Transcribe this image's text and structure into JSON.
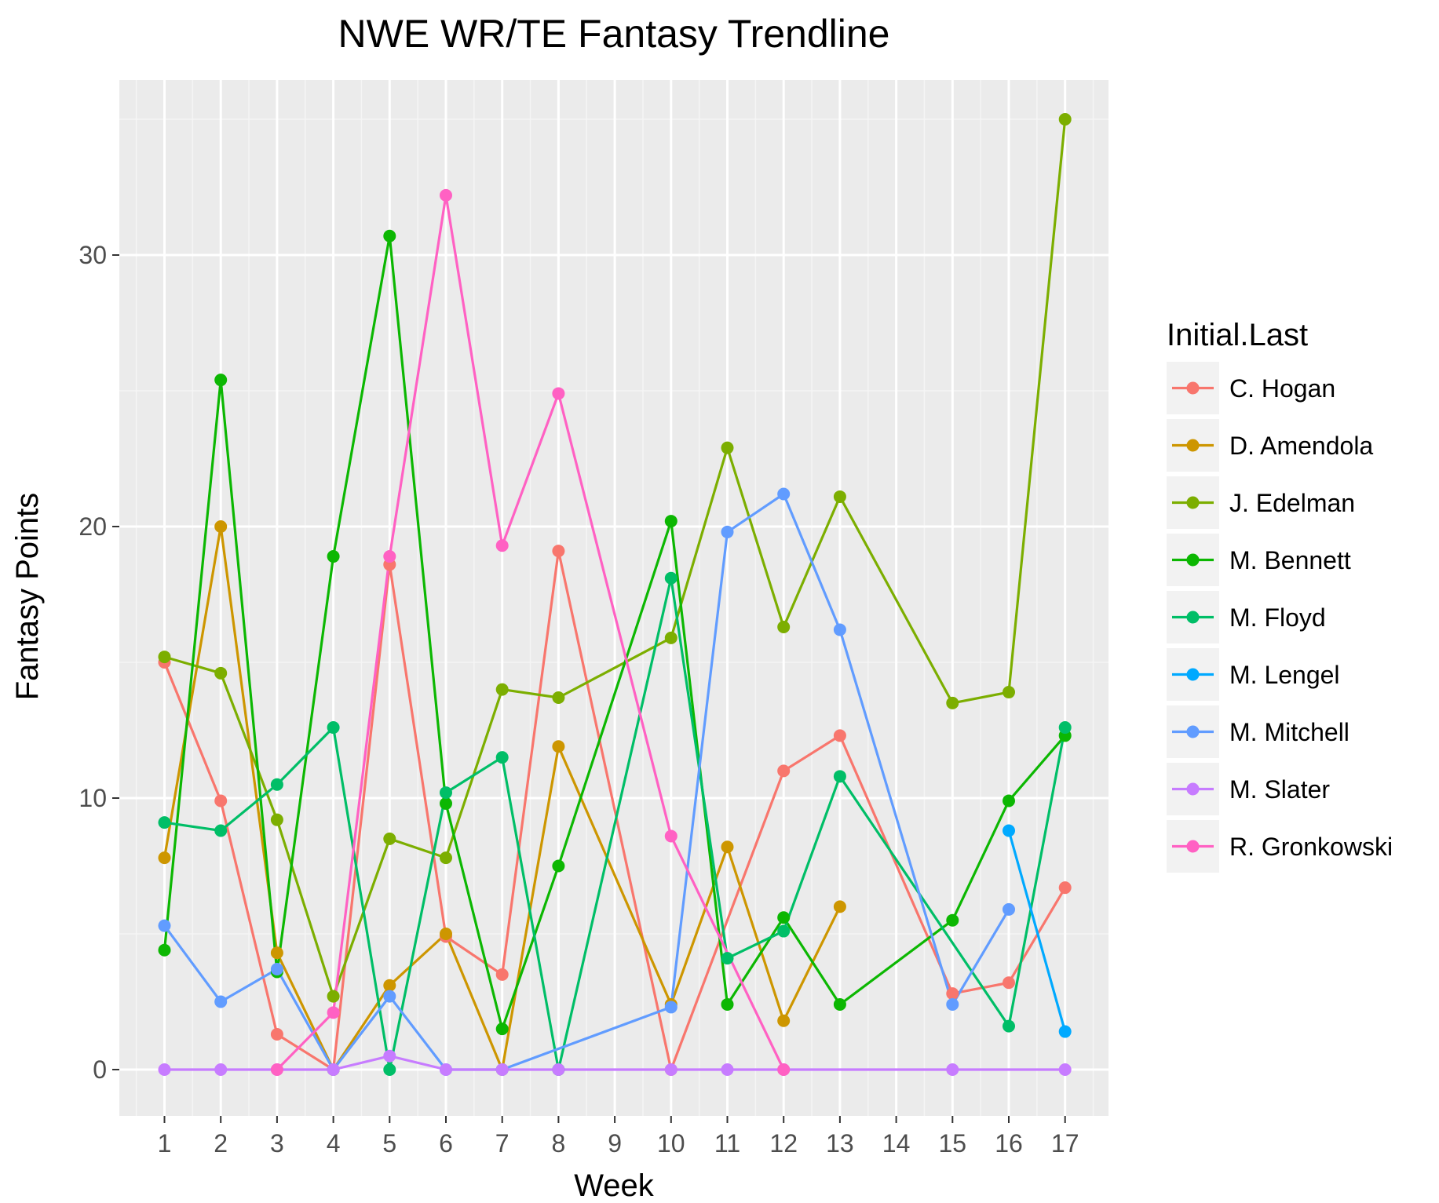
{
  "chart_data": {
    "type": "line",
    "title": "NWE WR/TE Fantasy Trendline",
    "xlabel": "Week",
    "ylabel": "Fantasy Points",
    "x": [
      1,
      2,
      3,
      4,
      5,
      6,
      7,
      8,
      9,
      10,
      11,
      12,
      13,
      14,
      15,
      16,
      17
    ],
    "x_tick_labels": [
      "1",
      "2",
      "3",
      "4",
      "5",
      "6",
      "7",
      "8",
      "9",
      "10",
      "11",
      "12",
      "13",
      "14",
      "15",
      "16",
      "17"
    ],
    "y_ticks": [
      0,
      10,
      20,
      30
    ],
    "y_tick_labels": [
      "0",
      "10",
      "20",
      "30"
    ],
    "ylim": [
      -1.7,
      36.6
    ],
    "grid": true,
    "legend_title": "Initial.Last",
    "legend_position": "right",
    "series": [
      {
        "name": "C. Hogan",
        "color": "#F8766D",
        "points": [
          [
            1,
            15
          ],
          [
            2,
            9.9
          ],
          [
            3,
            1.3
          ],
          [
            4,
            0
          ],
          [
            5,
            18.6
          ],
          [
            6,
            4.9
          ],
          [
            7,
            3.5
          ],
          [
            8,
            19.1
          ],
          [
            10,
            0
          ],
          [
            12,
            11
          ],
          [
            13,
            12.3
          ],
          [
            15,
            2.8
          ],
          [
            16,
            3.2
          ],
          [
            17,
            6.7
          ]
        ]
      },
      {
        "name": "D. Amendola",
        "color": "#CD9600",
        "points": [
          [
            1,
            7.8
          ],
          [
            2,
            20
          ],
          [
            3,
            4.3
          ],
          [
            4,
            0
          ],
          [
            5,
            3.1
          ],
          [
            6,
            5
          ],
          [
            7,
            0
          ],
          [
            8,
            11.9
          ],
          [
            10,
            2.4
          ],
          [
            11,
            8.2
          ],
          [
            12,
            1.8
          ],
          [
            13,
            6
          ]
        ]
      },
      {
        "name": "J. Edelman",
        "color": "#7CAE00",
        "points": [
          [
            1,
            15.2
          ],
          [
            2,
            14.6
          ],
          [
            3,
            9.2
          ],
          [
            4,
            2.7
          ],
          [
            5,
            8.5
          ],
          [
            6,
            7.8
          ],
          [
            7,
            14
          ],
          [
            8,
            13.7
          ],
          [
            10,
            15.9
          ],
          [
            11,
            22.9
          ],
          [
            12,
            16.3
          ],
          [
            13,
            21.1
          ],
          [
            15,
            13.5
          ],
          [
            16,
            13.9
          ],
          [
            17,
            35
          ]
        ]
      },
      {
        "name": "M. Bennett",
        "color": "#0CB702",
        "points": [
          [
            1,
            4.4
          ],
          [
            2,
            25.4
          ],
          [
            3,
            3.6
          ],
          [
            4,
            18.9
          ],
          [
            5,
            30.7
          ],
          [
            6,
            9.8
          ],
          [
            7,
            1.5
          ],
          [
            8,
            7.5
          ],
          [
            10,
            20.2
          ],
          [
            11,
            2.4
          ],
          [
            12,
            5.6
          ],
          [
            13,
            2.4
          ],
          [
            15,
            5.5
          ],
          [
            16,
            9.9
          ],
          [
            17,
            12.3
          ]
        ]
      },
      {
        "name": "M. Floyd",
        "color": "#00BE67",
        "points": [
          [
            1,
            9.1
          ],
          [
            2,
            8.8
          ],
          [
            3,
            10.5
          ],
          [
            4,
            12.6
          ],
          [
            5,
            0
          ],
          [
            6,
            10.2
          ],
          [
            7,
            11.5
          ],
          [
            8,
            0
          ],
          [
            10,
            18.1
          ],
          [
            11,
            4.1
          ],
          [
            12,
            5.1
          ],
          [
            13,
            10.8
          ],
          [
            16,
            1.6
          ],
          [
            17,
            12.6
          ]
        ]
      },
      {
        "name": "M. Lengel",
        "color": "#00A9FF",
        "points": [
          [
            16,
            8.8
          ],
          [
            17,
            1.4
          ]
        ]
      },
      {
        "name": "M. Mitchell",
        "color": "#619CFF",
        "points": [
          [
            1,
            5.3
          ],
          [
            2,
            2.5
          ],
          [
            3,
            3.7
          ],
          [
            4,
            0
          ],
          [
            5,
            2.7
          ],
          [
            6,
            0
          ],
          [
            7,
            0
          ],
          [
            10,
            2.3
          ],
          [
            11,
            19.8
          ],
          [
            12,
            21.2
          ],
          [
            13,
            16.2
          ],
          [
            15,
            2.4
          ],
          [
            16,
            5.9
          ]
        ]
      },
      {
        "name": "M. Slater",
        "color": "#C77CFF",
        "points": [
          [
            1,
            0
          ],
          [
            2,
            0
          ],
          [
            3,
            0
          ],
          [
            4,
            0
          ],
          [
            5,
            0.5
          ],
          [
            6,
            0
          ],
          [
            7,
            0
          ],
          [
            8,
            0
          ],
          [
            10,
            0
          ],
          [
            11,
            0
          ],
          [
            12,
            0
          ],
          [
            15,
            0
          ],
          [
            17,
            0
          ]
        ]
      },
      {
        "name": "R. Gronkowski",
        "color": "#FF61C3",
        "points": [
          [
            3,
            0
          ],
          [
            4,
            2.1
          ],
          [
            5,
            18.9
          ],
          [
            6,
            32.2
          ],
          [
            7,
            19.3
          ],
          [
            8,
            24.9
          ],
          [
            10,
            8.6
          ],
          [
            12,
            0
          ]
        ]
      }
    ]
  }
}
